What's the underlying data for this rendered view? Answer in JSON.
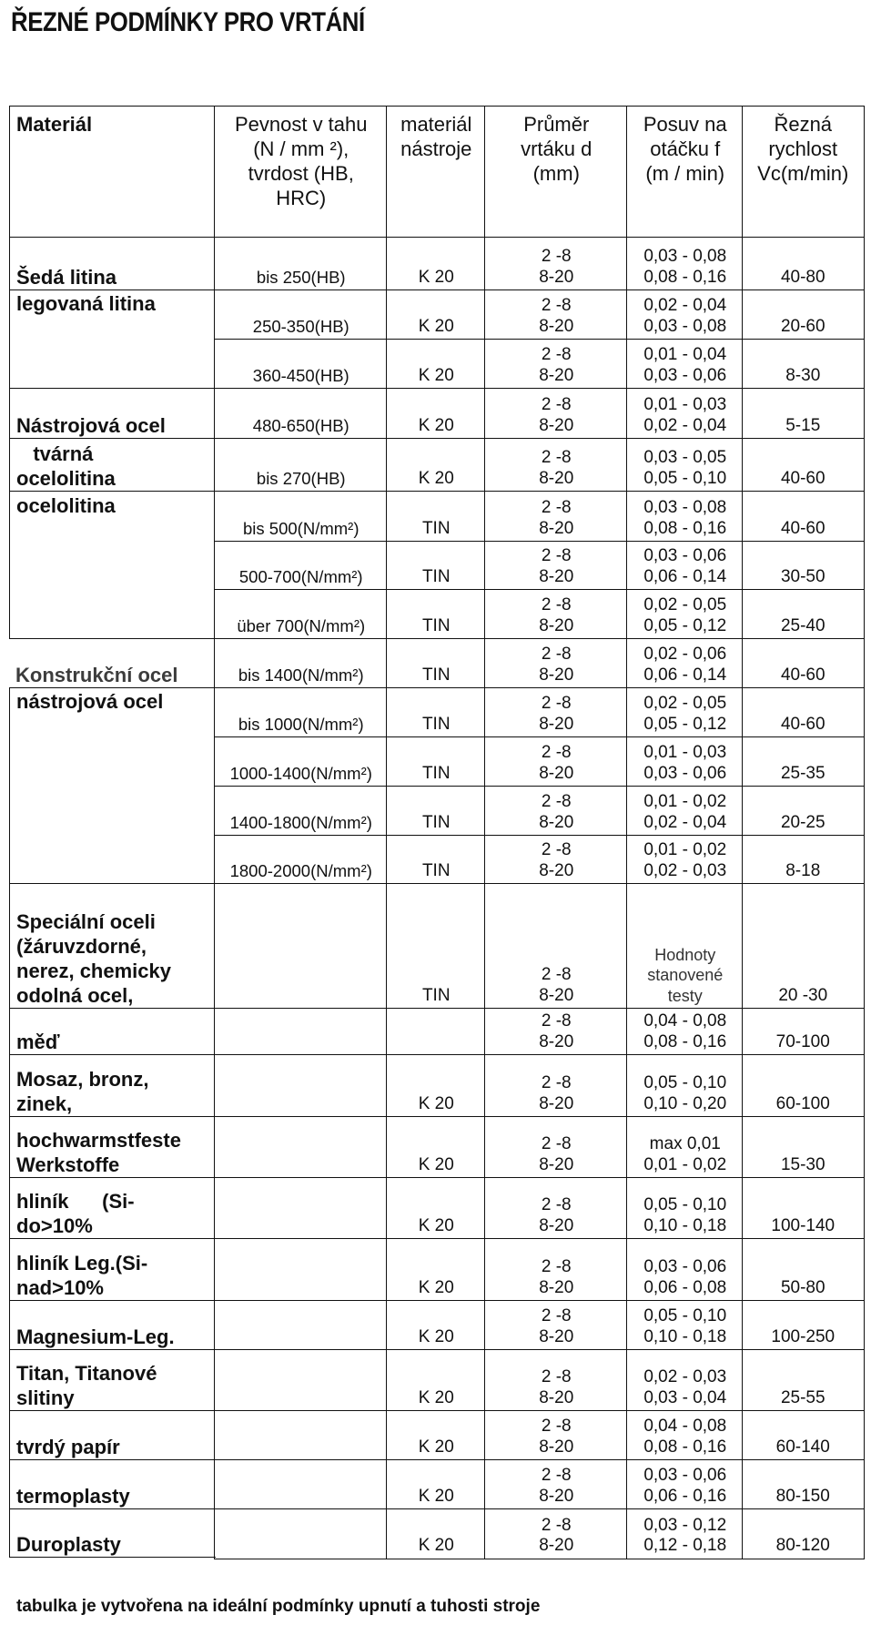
{
  "title": "ŘEZNÉ PODMÍNKY PRO VRTÁNÍ",
  "headers": [
    [
      "Materiál"
    ],
    [
      "Pevnost v tahu",
      "(N / mm ²),",
      "tvrdost (HB,",
      "HRC)"
    ],
    [
      "materiál",
      "nástroje"
    ],
    [
      "Průměr",
      "vrtáku d",
      "(mm)"
    ],
    [
      "Posuv na",
      "otáčku f",
      "(m / min)"
    ],
    [
      "Řezná",
      "rychlost",
      "Vc(m/min)"
    ]
  ],
  "rows": [
    {
      "material": [
        "Šedá litina"
      ],
      "strength": "bis 250(HB)",
      "tool": "K 20",
      "diameter": [
        "2 -8",
        "8-20"
      ],
      "feed": [
        "0,03 - 0,08",
        "0,08 - 0,16"
      ],
      "speed": "40-80"
    },
    {
      "material": [
        "legovaná litina"
      ],
      "strength": "250-350(HB)",
      "tool": "K 20",
      "diameter": [
        "2 -8",
        "8-20"
      ],
      "feed": [
        "0,02 - 0,04",
        "0,03 - 0,08"
      ],
      "speed": "20-60"
    },
    {
      "material": null,
      "strength": "360-450(HB)",
      "tool": "K 20",
      "diameter": [
        "2 -8",
        "8-20"
      ],
      "feed": [
        "0,01 - 0,04",
        "0,03 - 0,06"
      ],
      "speed": "8-30"
    },
    {
      "material": [
        "Nástrojová ocel"
      ],
      "strength": "480-650(HB)",
      "tool": "K 20",
      "diameter": [
        "2 -8",
        "8-20"
      ],
      "feed": [
        "0,01 - 0,03",
        "0,02 - 0,04"
      ],
      "speed": "5-15"
    },
    {
      "material": [
        "   tvárná",
        "ocelolitina"
      ],
      "strength": "bis 270(HB)",
      "tool": "K 20",
      "diameter": [
        "2 -8",
        "8-20"
      ],
      "feed": [
        "0,03 - 0,05",
        "0,05 - 0,10"
      ],
      "speed": "40-60"
    },
    {
      "material": [
        "ocelolitina"
      ],
      "strength": "bis 500(N/mm²)",
      "tool": "TIN",
      "diameter": [
        "2 -8",
        "8-20"
      ],
      "feed": [
        "0,03 - 0,08",
        "0,08 - 0,16"
      ],
      "speed": "40-60"
    },
    {
      "material": null,
      "strength": "500-700(N/mm²)",
      "tool": "TIN",
      "diameter": [
        "2 -8",
        "8-20"
      ],
      "feed": [
        "0,03 - 0,06",
        "0,06 - 0,14"
      ],
      "speed": "30-50"
    },
    {
      "material": null,
      "strength": "über 700(N/mm²)",
      "tool": "TIN",
      "diameter": [
        "2 -8",
        "8-20"
      ],
      "feed": [
        "0,02 - 0,05",
        "0,05 - 0,12"
      ],
      "speed": "25-40"
    },
    {
      "material": [
        "Konstrukční ocel"
      ],
      "strength": "bis 1400(N/mm²)",
      "tool": "TIN",
      "diameter": [
        "2 -8",
        "8-20"
      ],
      "feed": [
        "0,02 - 0,06",
        "0,06 - 0,14"
      ],
      "speed": "40-60"
    },
    {
      "material": [
        "nástrojová ocel"
      ],
      "strength": "bis 1000(N/mm²)",
      "tool": "TIN",
      "diameter": [
        "2 -8",
        "8-20"
      ],
      "feed": [
        "0,02 - 0,05",
        "0,05 - 0,12"
      ],
      "speed": "40-60"
    },
    {
      "material": null,
      "strength": "1000-1400(N/mm²)",
      "tool": "TIN",
      "diameter": [
        "2 -8",
        "8-20"
      ],
      "feed": [
        "0,01 - 0,03",
        "0,03 - 0,06"
      ],
      "speed": "25-35"
    },
    {
      "material": null,
      "strength": "1400-1800(N/mm²)",
      "tool": "TIN",
      "diameter": [
        "2 -8",
        "8-20"
      ],
      "feed": [
        "0,01 - 0,02",
        "0,02 - 0,04"
      ],
      "speed": "20-25"
    },
    {
      "material": null,
      "strength": "1800-2000(N/mm²)",
      "tool": "TIN",
      "diameter": [
        "2 -8",
        "8-20"
      ],
      "feed": [
        "0,01 - 0,02",
        "0,02 - 0,03"
      ],
      "speed": "8-18"
    },
    {
      "material": [
        "Speciální oceli",
        "(žáruvzdorné,",
        "nerez, chemicky",
        "odolná ocel,"
      ],
      "strength": "",
      "tool": "TIN",
      "diameter": [
        "2 -8",
        "8-20"
      ],
      "feed": [
        "Hodnoty",
        "stanovené",
        "testy"
      ],
      "speed": "20 -30"
    },
    {
      "material": [
        "měď"
      ],
      "strength": "",
      "tool": "",
      "diameter": [
        "2 -8",
        "8-20"
      ],
      "feed": [
        "0,04 - 0,08",
        "0,08 - 0,16"
      ],
      "speed": "70-100"
    },
    {
      "material": [
        "Mosaz, bronz,",
        "zinek,"
      ],
      "strength": "",
      "tool": "K 20",
      "diameter": [
        "2 -8",
        "8-20"
      ],
      "feed": [
        "0,05 - 0,10",
        "0,10 - 0,20"
      ],
      "speed": "60-100"
    },
    {
      "material": [
        "hochwarmstfeste",
        "Werkstoffe"
      ],
      "strength": "",
      "tool": "K 20",
      "diameter": [
        "2 -8",
        "8-20"
      ],
      "feed": [
        "max  0,01",
        "0,01 - 0,02"
      ],
      "speed": "15-30"
    },
    {
      "material": [
        "hliník      (Si-",
        "do>10%"
      ],
      "strength": "",
      "tool": "K 20",
      "diameter": [
        "2 -8",
        "8-20"
      ],
      "feed": [
        "0,05 - 0,10",
        "0,10 - 0,18"
      ],
      "speed": "100-140"
    },
    {
      "material": [
        "hliník Leg.(Si-",
        "nad>10%"
      ],
      "strength": "",
      "tool": "K 20",
      "diameter": [
        "2 -8",
        "8-20"
      ],
      "feed": [
        "0,03 - 0,06",
        "0,06 - 0,08"
      ],
      "speed": "50-80"
    },
    {
      "material": [
        "Magnesium-Leg."
      ],
      "strength": "",
      "tool": "K 20",
      "diameter": [
        "2 -8",
        "8-20"
      ],
      "feed": [
        "0,05 - 0,10",
        "0,10 - 0,18"
      ],
      "speed": "100-250"
    },
    {
      "material": [
        "Titan, Titanové",
        "slitiny"
      ],
      "strength": "",
      "tool": "K 20",
      "diameter": [
        "2 -8",
        "8-20"
      ],
      "feed": [
        "0,02 - 0,03",
        "0,03 - 0,04"
      ],
      "speed": "25-55"
    },
    {
      "material": [
        "tvrdý papír"
      ],
      "strength": "",
      "tool": "K 20",
      "diameter": [
        "2 -8",
        "8-20"
      ],
      "feed": [
        "0,04 - 0,08",
        "0,08 - 0,16"
      ],
      "speed": "60-140"
    },
    {
      "material": [
        "termoplasty"
      ],
      "strength": "",
      "tool": "K 20",
      "diameter": [
        "2 -8",
        "8-20"
      ],
      "feed": [
        "0,03 - 0,06",
        "0,06 - 0,16"
      ],
      "speed": "80-150"
    },
    {
      "material": [
        "Duroplasty"
      ],
      "strength": "",
      "tool": "K 20",
      "diameter": [
        "2 -8",
        "8-20"
      ],
      "feed": [
        "0,03 - 0,12",
        "0,12 - 0,18"
      ],
      "speed": "80-120"
    }
  ],
  "footer": "tabulka je vytvořena na ideální podmínky upnutí a tuhosti stroje",
  "colors": {
    "text": "#111111",
    "grid": "#111111",
    "muted_material": "#3c3c3c"
  }
}
